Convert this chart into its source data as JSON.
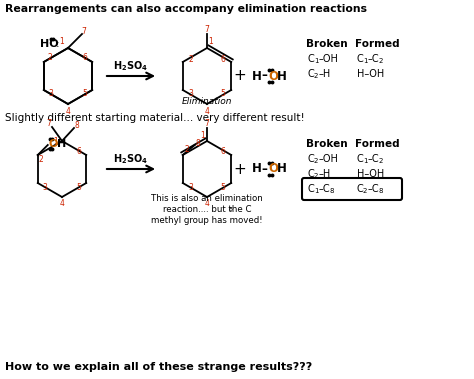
{
  "title1": "Rearrangements can also accompany elimination reactions",
  "title2": "Slightly different starting material... very different result!",
  "title3": "How to we explain all of these strange results???",
  "bg_color": "#ffffff",
  "black": "#000000",
  "orange": "#cc6600",
  "red": "#cc2200",
  "elim_label": "Elimination",
  "broken_header": "Broken",
  "formed_header": "Formed",
  "figsize": [
    4.74,
    3.79
  ],
  "dpi": 100
}
